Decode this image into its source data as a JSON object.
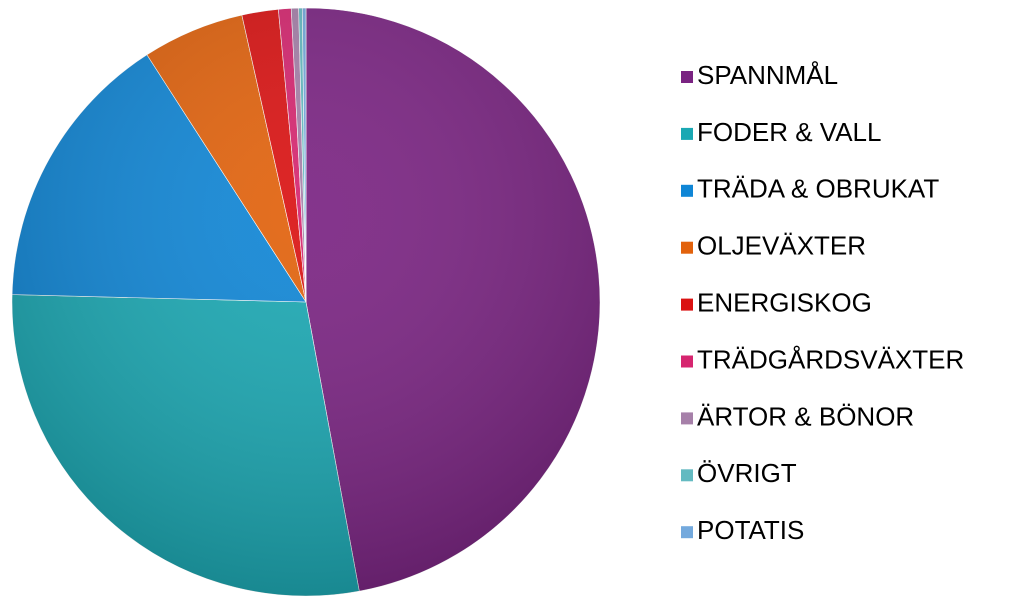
{
  "chart_data": {
    "type": "pie",
    "categories": [
      "SPANNMÅL",
      "FODER & VALL",
      "TRÄDA & OBRUKAT",
      "OLJEVÄXTER",
      "ENERGISKOG",
      "TRÄDGÅRDSVÄXTER",
      "ÄRTOR & BÖNOR",
      "ÖVRIGT",
      "POTATIS"
    ],
    "values": [
      47.1,
      28.3,
      15.5,
      5.6,
      2.0,
      0.7,
      0.4,
      0.2,
      0.2
    ],
    "colors": [
      "#7a2382",
      "#1aa8b3",
      "#0f86d6",
      "#e2620c",
      "#da1212",
      "#d6256f",
      "#a680a9",
      "#63bac1",
      "#73a9dd"
    ],
    "legend": "right"
  }
}
